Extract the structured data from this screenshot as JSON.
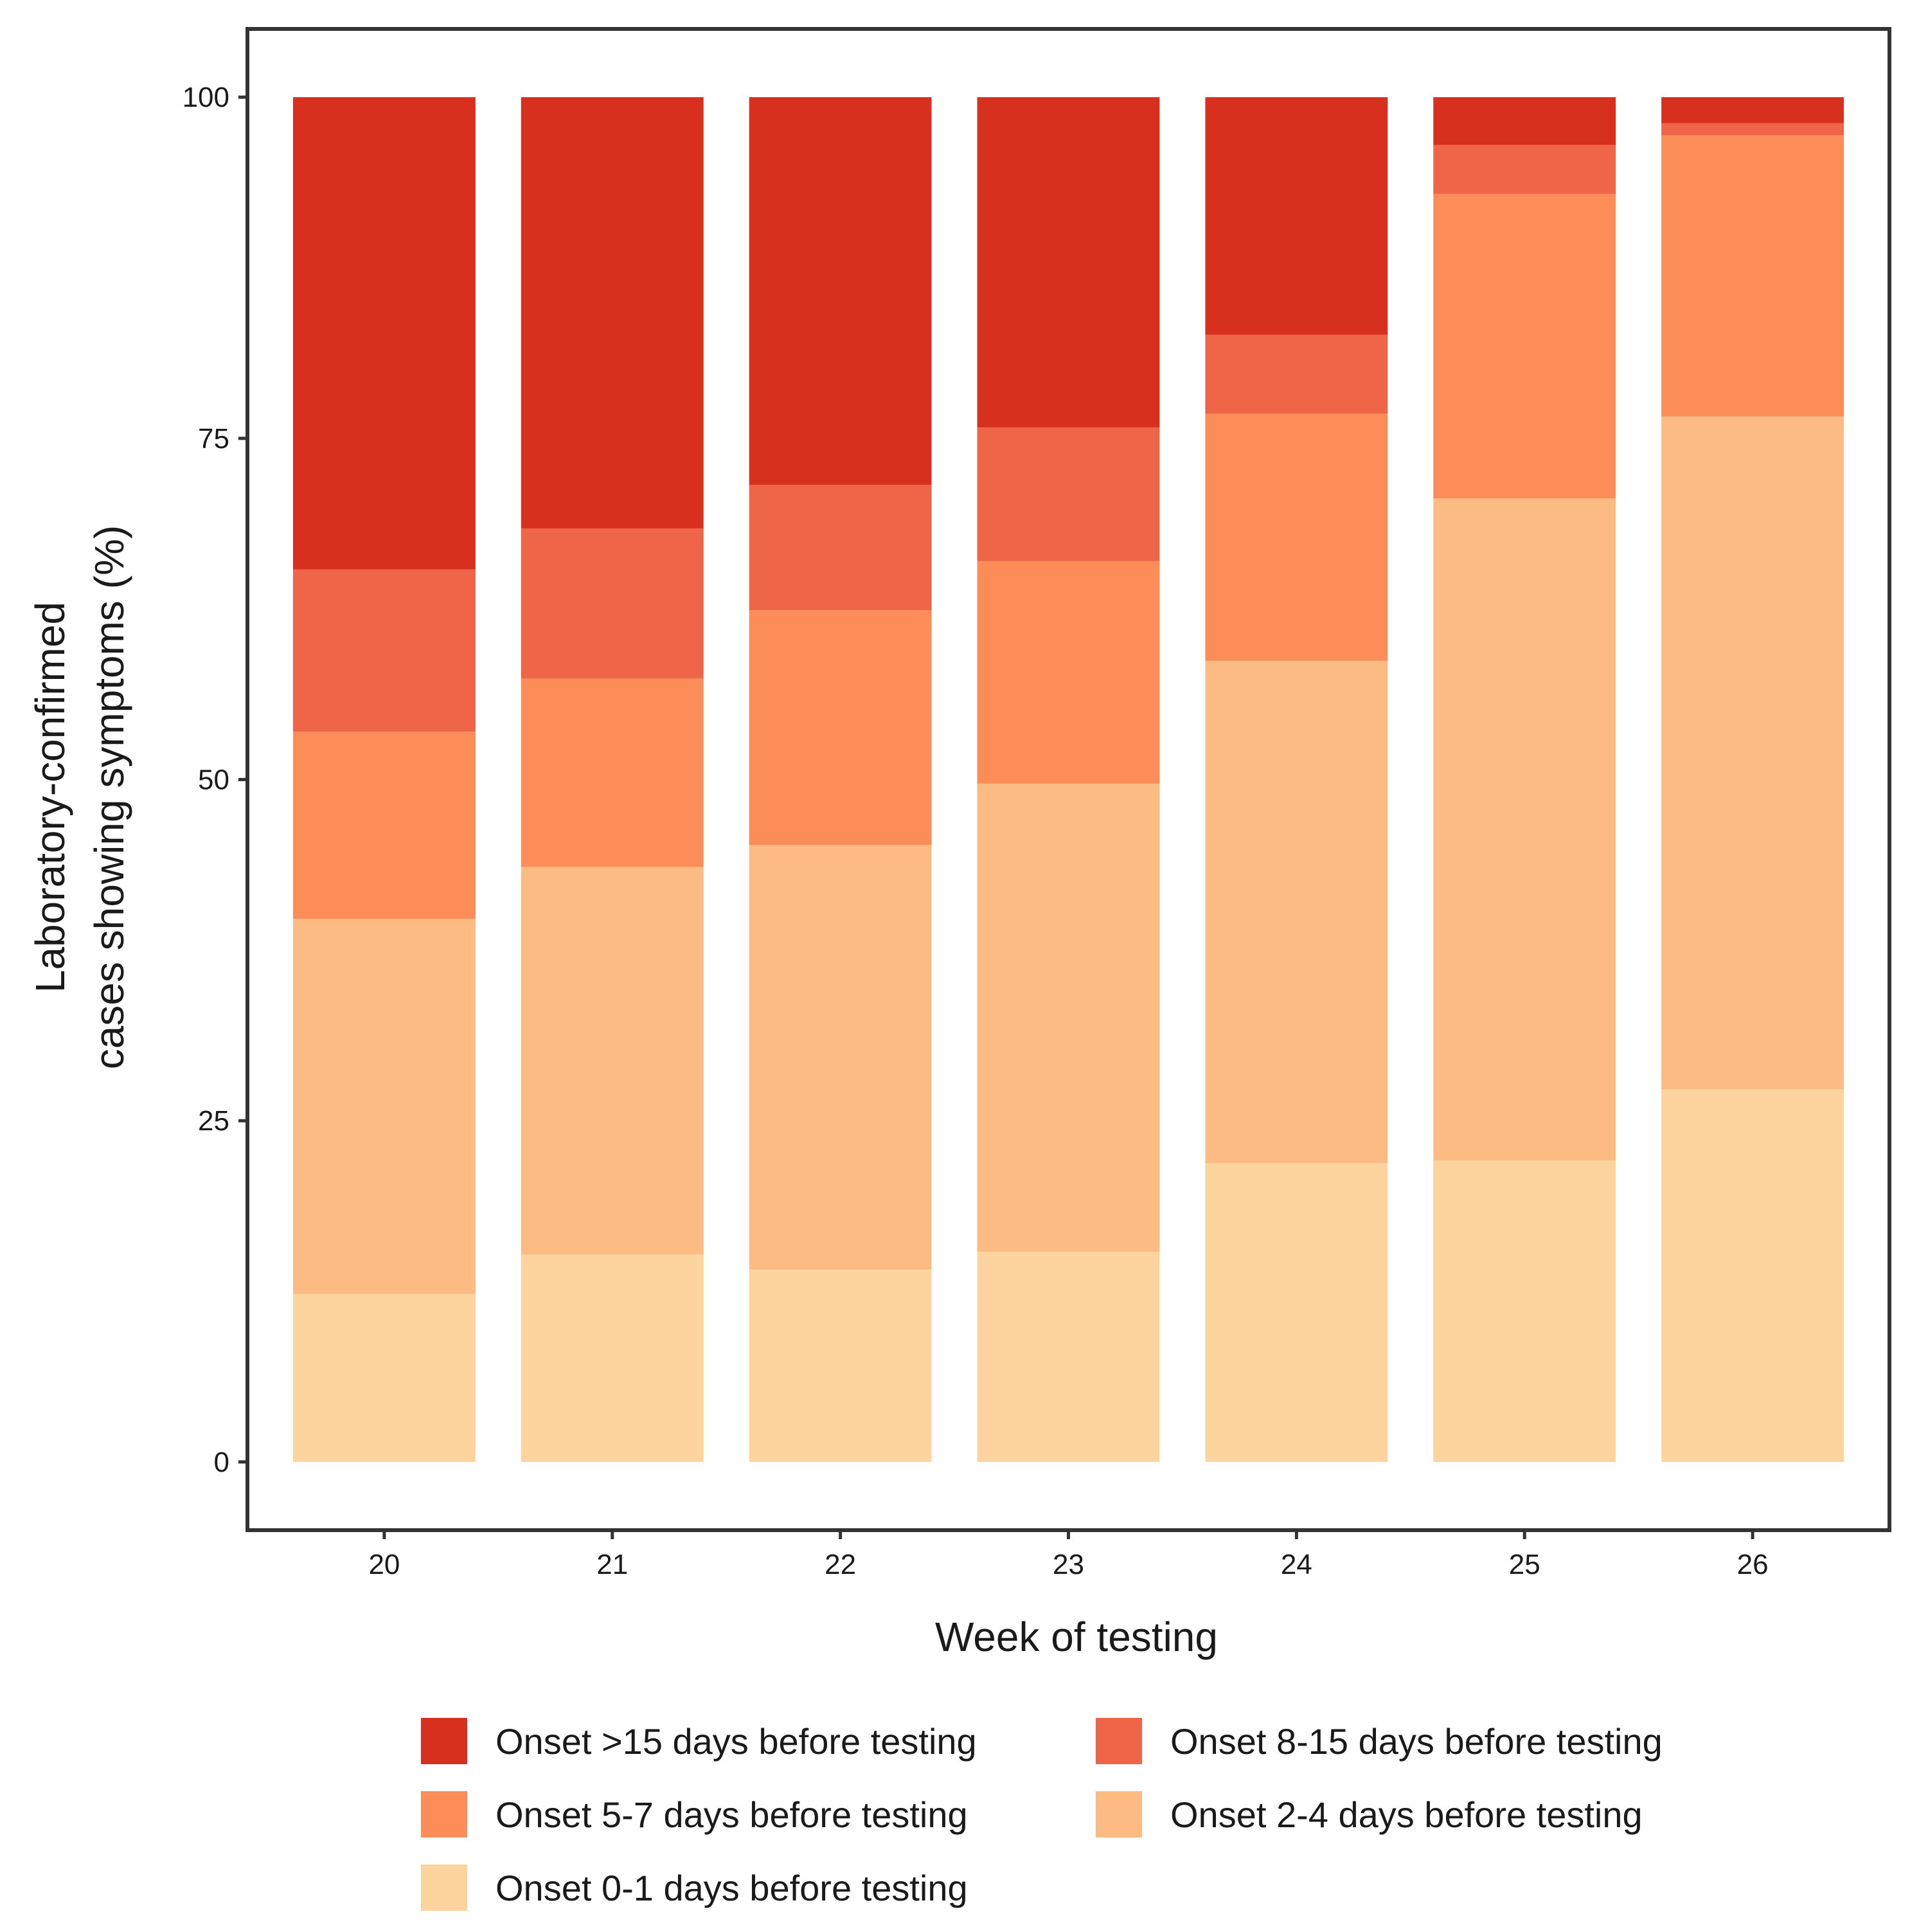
{
  "chart_data": {
    "type": "bar",
    "stacked": true,
    "xlabel": "Week of testing",
    "ylabel_lines": [
      "Laboratory-confirmed",
      "cases showing symptoms (%)"
    ],
    "categories": [
      "20",
      "21",
      "22",
      "23",
      "24",
      "25",
      "26"
    ],
    "ylim": [
      -5,
      105
    ],
    "yticks": [
      0,
      25,
      50,
      75,
      100
    ],
    "ytick_labels": [
      "0",
      "25",
      "50",
      "75",
      "100"
    ],
    "grid": false,
    "legend_position": "bottom",
    "series": [
      {
        "name": "Onset 0-1 days before testing",
        "color": "#fdd49e",
        "values": [
          12.3,
          15.2,
          14.1,
          15.4,
          21.9,
          22.1,
          27.3
        ]
      },
      {
        "name": "Onset 2-4 days before testing",
        "color": "#fdbb84",
        "values": [
          27.5,
          28.4,
          31.1,
          34.3,
          36.8,
          48.5,
          49.3
        ]
      },
      {
        "name": "Onset 5-7 days before testing",
        "color": "#fc8d59",
        "values": [
          13.7,
          13.8,
          17.2,
          16.3,
          18.1,
          22.3,
          20.6
        ]
      },
      {
        "name": "Onset 8-15 days before testing",
        "color": "#ef6548",
        "values": [
          11.9,
          11.0,
          9.2,
          9.8,
          5.8,
          3.6,
          0.9
        ]
      },
      {
        "name": "Onset >15 days before testing",
        "color": "#d7301f",
        "values": [
          34.6,
          31.6,
          28.4,
          24.2,
          17.4,
          3.5,
          1.9
        ]
      }
    ],
    "legend_order": [
      4,
      3,
      2,
      1,
      0
    ]
  }
}
